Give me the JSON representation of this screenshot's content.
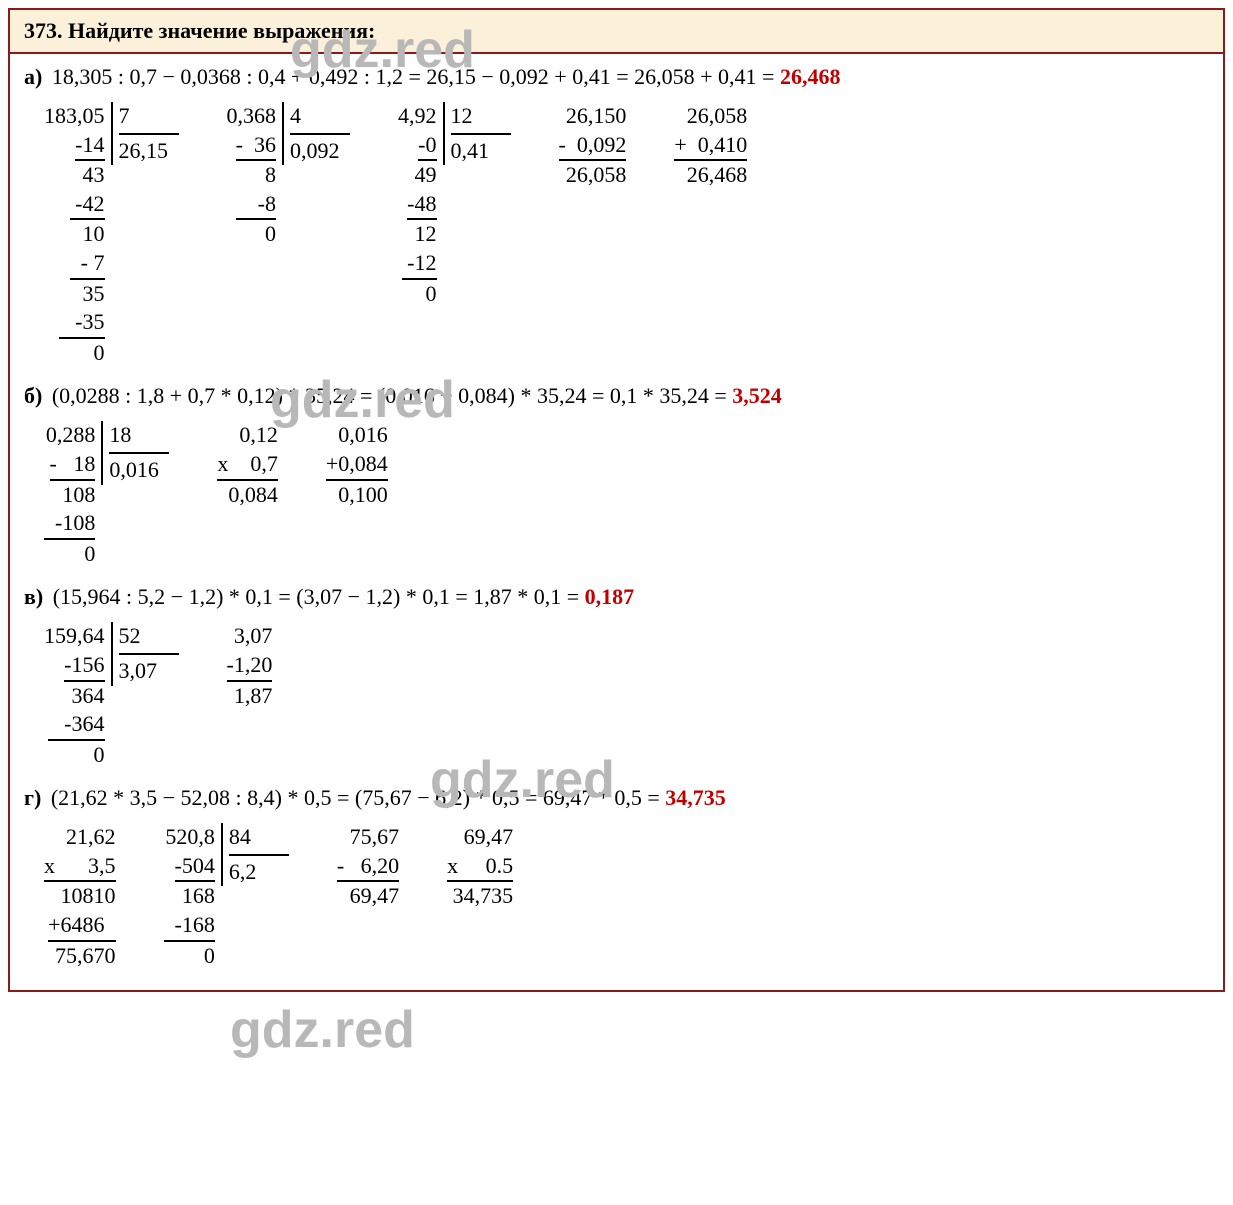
{
  "colors": {
    "border": "#8B1A1A",
    "header_bg": "#FBF0DA",
    "answer": "#C00000",
    "watermark": "#B8B8B8",
    "text": "#000000"
  },
  "typography": {
    "font_family": "Times New Roman",
    "base_fontsize": 22,
    "watermark_fontsize": 52
  },
  "watermark_text": "gdz.red",
  "header": {
    "number": "373.",
    "title": "Найдите значение выражения:"
  },
  "problems": {
    "a": {
      "label": "а)",
      "expression": "18,305 : 0,7 − 0,0368 : 0,4 + 0,492 : 1,2 = 26,15 − 0,092 + 0,41 = 26,058 + 0,41 = ",
      "answer": "26,468",
      "div1": {
        "dividend": "183,05",
        "divisor": "7",
        "quotient": "26,15",
        "steps": [
          "-14",
          "  43",
          " -42",
          "   10",
          "  - 7",
          "    35",
          "   -35",
          "      0"
        ],
        "rules": [
          1,
          0,
          1,
          0,
          1,
          0,
          1,
          0
        ]
      },
      "div2": {
        "dividend": "0,368",
        "divisor": "4",
        "quotient": "0,092",
        "steps": [
          "-  36",
          "     8",
          "    -8",
          "     0"
        ],
        "rules": [
          1,
          0,
          1,
          0
        ]
      },
      "div3": {
        "dividend": "4,92",
        "divisor": "12",
        "quotient": "0,41",
        "steps": [
          "-0",
          " 49",
          "-48",
          "  12",
          " -12",
          "    0"
        ],
        "rules": [
          1,
          0,
          1,
          0,
          1,
          0
        ]
      },
      "sub": {
        "lines": [
          "26,150",
          "-  0,092",
          "26,058"
        ],
        "rules": [
          0,
          1,
          0
        ]
      },
      "add": {
        "lines": [
          "26,058",
          "+  0,410",
          "26,468"
        ],
        "rules": [
          0,
          1,
          0
        ]
      }
    },
    "b": {
      "label": "б)",
      "expression": "(0,0288 : 1,8 + 0,7 * 0,12) * 35,24 = (0,016 + 0,084) * 35,24 = 0,1 * 35,24 = ",
      "answer": "3,524",
      "div1": {
        "dividend": "0,288",
        "divisor": "18",
        "quotient": "0,016",
        "steps": [
          "-   18",
          "   108",
          "  -108",
          "       0"
        ],
        "rules": [
          1,
          0,
          1,
          0
        ]
      },
      "mul": {
        "lines": [
          "0,12",
          "x    0,7",
          "0,084"
        ],
        "rules": [
          0,
          1,
          0
        ]
      },
      "add": {
        "lines": [
          "0,016",
          "+0,084",
          "0,100"
        ],
        "rules": [
          0,
          1,
          0
        ]
      }
    },
    "c": {
      "label": "в)",
      "expression": "(15,964 : 5,2 − 1,2) * 0,1 = (3,07 − 1,2) * 0,1 = 1,87 * 0,1 = ",
      "answer": "0,187",
      "div1": {
        "dividend": "159,64",
        "divisor": "52",
        "quotient": "3,07",
        "steps": [
          "-156",
          "    364",
          "   -364",
          "        0"
        ],
        "rules": [
          1,
          0,
          1,
          0
        ]
      },
      "sub": {
        "lines": [
          "3,07",
          "-1,20",
          "1,87"
        ],
        "rules": [
          0,
          1,
          0
        ]
      }
    },
    "d": {
      "label": "г)",
      "expression": "(21,62 * 3,5 − 52,08 : 8,4) * 0,5 = (75,67 − 6,2) * 0,5 = 69,47 * 0,5 = ",
      "answer": "34,735",
      "mul1": {
        "lines": [
          "21,62",
          "x      3,5",
          "10810",
          "+6486  ",
          "75,670"
        ],
        "rules": [
          0,
          1,
          0,
          1,
          0
        ]
      },
      "div1": {
        "dividend": "520,8",
        "divisor": "84",
        "quotient": "6,2",
        "steps": [
          "-504",
          "   168",
          "  -168",
          "       0"
        ],
        "rules": [
          1,
          0,
          1,
          0
        ]
      },
      "sub": {
        "lines": [
          "75,67",
          "-   6,20",
          "69,47"
        ],
        "rules": [
          0,
          1,
          0
        ]
      },
      "mul2": {
        "lines": [
          "69,47",
          "x     0.5",
          "34,735"
        ],
        "rules": [
          0,
          1,
          0
        ]
      }
    }
  }
}
